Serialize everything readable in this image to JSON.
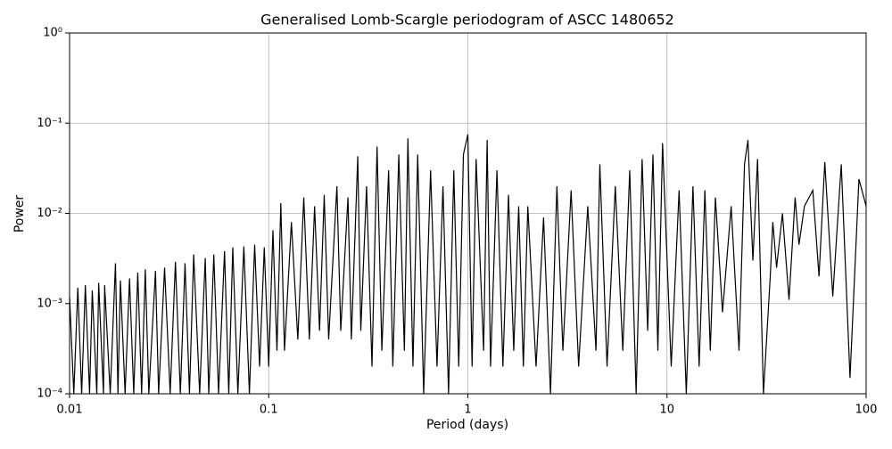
{
  "chart_data": {
    "type": "line",
    "title": "Generalised Lomb-Scargle periodogram of ASCC 1480652",
    "x_label": "Period (days)",
    "y_label": "Power",
    "xscale": "log",
    "yscale": "log",
    "grid": true,
    "xlim": [
      0.01,
      100
    ],
    "ylim": [
      0.0001,
      1
    ],
    "xticks": [
      0.01,
      0.1,
      1,
      10,
      100
    ],
    "yticks": [
      {
        "value": 0.0001,
        "label": "10⁻⁴"
      },
      {
        "value": 0.001,
        "label": "10⁻³"
      },
      {
        "value": 0.01,
        "label": "10⁻²"
      },
      {
        "value": 0.1,
        "label": "10⁻¹"
      },
      {
        "value": 1,
        "label": "10⁰"
      }
    ],
    "x": [
      0.01,
      0.0105,
      0.011,
      0.0115,
      0.012,
      0.0126,
      0.013,
      0.0137,
      0.014,
      0.0148,
      0.015,
      0.016,
      0.017,
      0.0175,
      0.018,
      0.019,
      0.02,
      0.021,
      0.022,
      0.023,
      0.024,
      0.025,
      0.027,
      0.028,
      0.03,
      0.032,
      0.034,
      0.036,
      0.038,
      0.04,
      0.042,
      0.045,
      0.048,
      0.05,
      0.053,
      0.056,
      0.06,
      0.063,
      0.066,
      0.07,
      0.075,
      0.08,
      0.085,
      0.09,
      0.095,
      0.1,
      0.105,
      0.11,
      0.115,
      0.12,
      0.13,
      0.14,
      0.15,
      0.16,
      0.17,
      0.18,
      0.19,
      0.2,
      0.22,
      0.23,
      0.25,
      0.26,
      0.28,
      0.29,
      0.31,
      0.33,
      0.35,
      0.37,
      0.4,
      0.42,
      0.45,
      0.48,
      0.5,
      0.53,
      0.56,
      0.6,
      0.65,
      0.7,
      0.75,
      0.8,
      0.85,
      0.9,
      0.95,
      1.0,
      1.05,
      1.1,
      1.2,
      1.25,
      1.3,
      1.4,
      1.5,
      1.6,
      1.7,
      1.8,
      1.9,
      2.0,
      2.2,
      2.4,
      2.6,
      2.8,
      3.0,
      3.3,
      3.6,
      4.0,
      4.4,
      4.6,
      5.0,
      5.5,
      6.0,
      6.5,
      7.0,
      7.5,
      8.0,
      8.5,
      9.0,
      9.5,
      10.5,
      11.5,
      12.5,
      13.5,
      14.5,
      15.5,
      16.5,
      17.5,
      19,
      21,
      23,
      24.5,
      25.5,
      27,
      28.5,
      30.5,
      33,
      34,
      35.5,
      38,
      41,
      44,
      46,
      49,
      54,
      58,
      62,
      68,
      75,
      83,
      92,
      100
    ],
    "series": [
      {
        "color": "#000000",
        "values": [
          0.0012,
          0.0001,
          0.0015,
          0.0001,
          0.0016,
          0.0001,
          0.0014,
          0.0001,
          0.0017,
          0.0001,
          0.0016,
          0.0001,
          0.0028,
          0.0001,
          0.0018,
          0.0001,
          0.0019,
          0.0001,
          0.0022,
          0.0001,
          0.0024,
          0.0001,
          0.0023,
          0.0001,
          0.0025,
          0.0001,
          0.0029,
          0.0001,
          0.0028,
          0.0001,
          0.0035,
          0.0001,
          0.0032,
          0.0001,
          0.0035,
          0.0001,
          0.0038,
          0.0001,
          0.0042,
          0.0001,
          0.0043,
          0.0001,
          0.0045,
          0.0002,
          0.0042,
          0.0002,
          0.0065,
          0.0003,
          0.013,
          0.0003,
          0.008,
          0.0004,
          0.015,
          0.0004,
          0.012,
          0.0005,
          0.016,
          0.0004,
          0.02,
          0.0005,
          0.015,
          0.0004,
          0.043,
          0.0005,
          0.02,
          0.0002,
          0.055,
          0.0003,
          0.03,
          0.0002,
          0.045,
          0.0003,
          0.068,
          0.0002,
          0.045,
          0.0001,
          0.03,
          0.0002,
          0.02,
          0.0001,
          0.03,
          0.0002,
          0.045,
          0.075,
          0.0002,
          0.04,
          0.0003,
          0.065,
          0.0002,
          0.03,
          0.0002,
          0.016,
          0.0003,
          0.012,
          0.0002,
          0.012,
          0.0002,
          0.009,
          0.0001,
          0.02,
          0.0003,
          0.018,
          0.0002,
          0.012,
          0.0003,
          0.035,
          0.0002,
          0.02,
          0.0003,
          0.03,
          0.0001,
          0.04,
          0.0005,
          0.045,
          0.0003,
          0.06,
          0.0002,
          0.018,
          0.0001,
          0.02,
          0.0002,
          0.018,
          0.0003,
          0.015,
          0.0008,
          0.012,
          0.0003,
          0.035,
          0.065,
          0.003,
          0.04,
          0.0001,
          0.002,
          0.008,
          0.0025,
          0.01,
          0.0011,
          0.015,
          0.0045,
          0.012,
          0.018,
          0.002,
          0.037,
          0.0012,
          0.035,
          0.00015,
          0.024,
          0.012
        ]
      }
    ]
  }
}
